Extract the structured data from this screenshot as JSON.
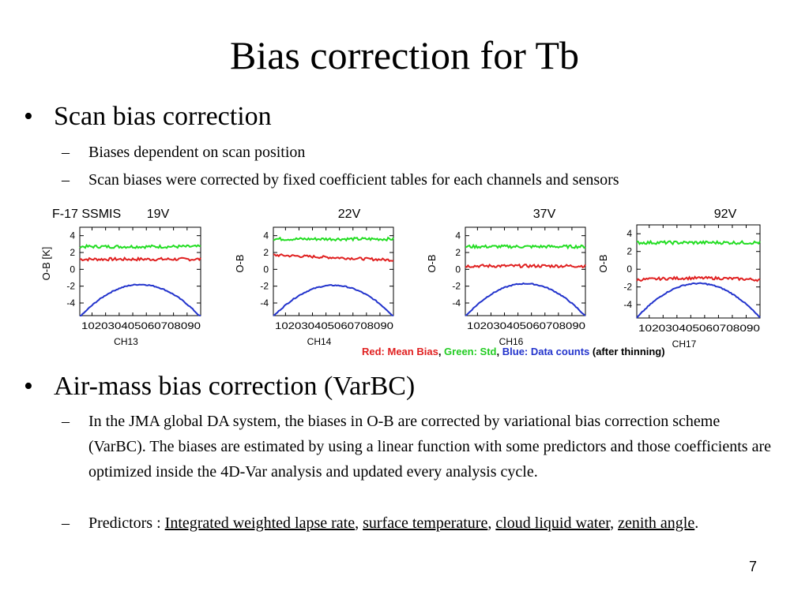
{
  "title": "Bias correction for Tb",
  "section1": {
    "bullet": "•",
    "heading": "Scan bias correction",
    "items": [
      "Biases dependent on scan position",
      "Scan biases were corrected by fixed coefficient tables for each channels and sensors"
    ]
  },
  "chart_data": [
    {
      "type": "line",
      "sensor_label": "F-17 SSMIS",
      "frequency_label": "19V",
      "xlabel": "CH13",
      "ylabel": "O-B [K]",
      "x_ticks": [
        "10",
        "20",
        "30",
        "40",
        "50",
        "60",
        "70",
        "80",
        "90"
      ],
      "y_ticks": [
        "4",
        "2",
        "0",
        "-2",
        "-4"
      ],
      "ylim": [
        -5.5,
        5
      ],
      "xlim": [
        1,
        90
      ],
      "series": [
        {
          "name": "Mean Bias",
          "color": "#e02020",
          "shape": "flat",
          "level": 1.2,
          "amp": 0.0
        },
        {
          "name": "Std",
          "color": "#22dd22",
          "shape": "flat",
          "level": 2.7,
          "amp": 0.0
        },
        {
          "name": "Data counts",
          "color": "#2233cc",
          "shape": "arch",
          "peak": -1.8,
          "ends": -5.7
        }
      ]
    },
    {
      "type": "line",
      "sensor_label": "",
      "frequency_label": "22V",
      "xlabel": "CH14",
      "ylabel": "O-B",
      "x_ticks": [
        "10",
        "20",
        "30",
        "40",
        "50",
        "60",
        "70",
        "80",
        "90"
      ],
      "y_ticks": [
        "4",
        "2",
        "0",
        "-2",
        "-4"
      ],
      "ylim": [
        -5.5,
        5
      ],
      "xlim": [
        1,
        90
      ],
      "series": [
        {
          "name": "Mean Bias",
          "color": "#e02020",
          "shape": "slope",
          "start": 1.7,
          "end": 1.1
        },
        {
          "name": "Std",
          "color": "#22dd22",
          "shape": "flat",
          "level": 3.6,
          "amp": 0.0
        },
        {
          "name": "Data counts",
          "color": "#2233cc",
          "shape": "arch",
          "peak": -1.9,
          "ends": -5.6
        }
      ]
    },
    {
      "type": "line",
      "sensor_label": "",
      "frequency_label": "37V",
      "xlabel": "CH16",
      "ylabel": "O-B",
      "x_ticks": [
        "10",
        "20",
        "30",
        "40",
        "50",
        "60",
        "70",
        "80",
        "90"
      ],
      "y_ticks": [
        "4",
        "2",
        "0",
        "-2",
        "-4"
      ],
      "ylim": [
        -5.5,
        5
      ],
      "xlim": [
        1,
        90
      ],
      "series": [
        {
          "name": "Mean Bias",
          "color": "#e02020",
          "shape": "flat",
          "level": 0.4,
          "amp": 0.0
        },
        {
          "name": "Std",
          "color": "#22dd22",
          "shape": "flat",
          "level": 2.7,
          "amp": 0.0
        },
        {
          "name": "Data counts",
          "color": "#2233cc",
          "shape": "arch",
          "peak": -1.7,
          "ends": -5.6
        }
      ]
    },
    {
      "type": "line",
      "sensor_label": "",
      "frequency_label": "92V",
      "xlabel": "CH17",
      "ylabel": "O-B",
      "x_ticks": [
        "10",
        "20",
        "30",
        "40",
        "50",
        "60",
        "70",
        "80",
        "90"
      ],
      "y_ticks": [
        "4",
        "2",
        "0",
        "-2",
        "-4"
      ],
      "ylim": [
        -5.5,
        5
      ],
      "xlim": [
        1,
        90
      ],
      "series": [
        {
          "name": "Mean Bias",
          "color": "#e02020",
          "shape": "dip",
          "start": -1.2,
          "mid": -1.0,
          "end": -1.2
        },
        {
          "name": "Std",
          "color": "#22dd22",
          "shape": "flat",
          "level": 3.0,
          "amp": 0.0
        },
        {
          "name": "Data counts",
          "color": "#2233cc",
          "shape": "arch",
          "peak": -1.6,
          "ends": -5.5
        }
      ]
    }
  ],
  "legend": {
    "red": "Red: Mean Bias",
    "sep1": ", ",
    "green": "Green: Std",
    "sep2": ", ",
    "blue": "Blue: Data counts",
    "tail": " (after thinning)",
    "colors": {
      "red": "#e02020",
      "green": "#22cc22",
      "blue": "#2233cc"
    }
  },
  "section2": {
    "bullet": "•",
    "heading": "Air-mass bias correction (VarBC)",
    "para": "In the JMA global DA system, the biases in O-B are corrected by variational bias correction scheme (VarBC). The biases are estimated by using a linear function with some predictors and those coefficients are optimized inside the 4D-Var analysis and updated every analysis cycle.",
    "predictors_prefix": "Predictors : ",
    "predictors": [
      "Integrated weighted lapse rate",
      "surface temperature",
      "cloud liquid water",
      "zenith angle"
    ],
    "comma": ", ",
    "end": "."
  },
  "page_number": "7"
}
